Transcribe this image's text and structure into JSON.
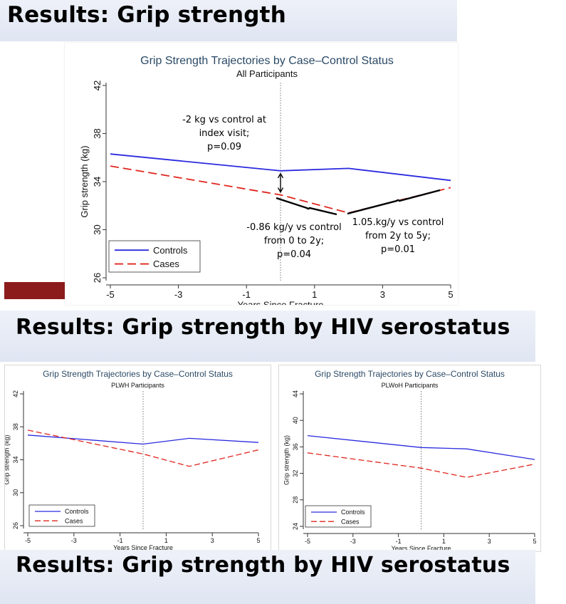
{
  "slide": {
    "heading_top": "Results:  Grip strength",
    "heading_middle": "Results:  Grip strength by HIV serostatus",
    "heading_bottom": "Results:  Grip strength by HIV serostatus",
    "accent_color": "#8c1c1c"
  },
  "chart_data": [
    {
      "type": "line",
      "title": "Grip Strength Trajectories by Case–Control Status",
      "subtitle": "All Participants",
      "xlabel": "Years Since Fracture",
      "ylabel": "Grip strength (kg)",
      "xlim": [
        -5,
        5
      ],
      "ylim": [
        26,
        42
      ],
      "xticks": [
        -5,
        -3,
        -1,
        1,
        3,
        5
      ],
      "yticks": [
        26,
        30,
        34,
        38,
        42
      ],
      "reference_x": 0,
      "series": [
        {
          "name": "Controls",
          "color": "#2a2ae0",
          "dash": "solid",
          "x": [
            -5,
            0,
            2,
            5
          ],
          "y": [
            36.3,
            34.9,
            35.1,
            34.1
          ]
        },
        {
          "name": "Cases",
          "color": "#e0261e",
          "dash": "dashed",
          "x": [
            -5,
            0,
            2,
            5
          ],
          "y": [
            35.3,
            32.9,
            31.4,
            33.5
          ]
        }
      ],
      "legend_position": "bottom-left",
      "annotations": [
        {
          "lines": [
            "-2 kg vs control at",
            "index visit;",
            "p=0.09"
          ]
        },
        {
          "lines": [
            "-0.86 kg/y vs control",
            "from 0 to 2y;",
            "p=0.04"
          ]
        },
        {
          "lines": [
            "1.05.kg/y vs control",
            "from 2y to 5y;",
            "p=0.01"
          ]
        }
      ]
    },
    {
      "type": "line",
      "title": "Grip Strength Trajectories by Case–Control Status",
      "subtitle": "PLWH Participants",
      "xlabel": "Years Since Fracture",
      "ylabel": "Grip strength (kg)",
      "xlim": [
        -5,
        5
      ],
      "ylim": [
        26,
        42
      ],
      "xticks": [
        -5,
        -3,
        -1,
        1,
        3,
        5
      ],
      "yticks": [
        26,
        30,
        34,
        38,
        42
      ],
      "reference_x": 0,
      "series": [
        {
          "name": "Controls",
          "color": "#2a2ae0",
          "dash": "solid",
          "x": [
            -5,
            0,
            2,
            5
          ],
          "y": [
            37.0,
            35.9,
            36.6,
            36.1
          ]
        },
        {
          "name": "Cases",
          "color": "#e0261e",
          "dash": "dashed",
          "x": [
            -5,
            0,
            2,
            5
          ],
          "y": [
            37.6,
            34.7,
            33.2,
            35.2
          ]
        }
      ],
      "legend_position": "bottom-left"
    },
    {
      "type": "line",
      "title": "Grip Strength Trajectories by Case–Control Status",
      "subtitle": "PLWoH Participants",
      "xlabel": "Years Since Fracture",
      "ylabel": "Grip strength (kg)",
      "xlim": [
        -5,
        5
      ],
      "ylim": [
        24,
        44
      ],
      "xticks": [
        -5,
        -3,
        -1,
        1,
        3,
        5
      ],
      "yticks": [
        24,
        28,
        32,
        36,
        40,
        44
      ],
      "reference_x": 0,
      "series": [
        {
          "name": "Controls",
          "color": "#2a2ae0",
          "dash": "solid",
          "x": [
            -5,
            0,
            2,
            5
          ],
          "y": [
            37.7,
            35.9,
            35.7,
            34.1
          ]
        },
        {
          "name": "Cases",
          "color": "#e0261e",
          "dash": "dashed",
          "x": [
            -5,
            0,
            2,
            5
          ],
          "y": [
            35.1,
            32.8,
            31.4,
            33.4
          ]
        }
      ],
      "legend_position": "bottom-left"
    }
  ]
}
